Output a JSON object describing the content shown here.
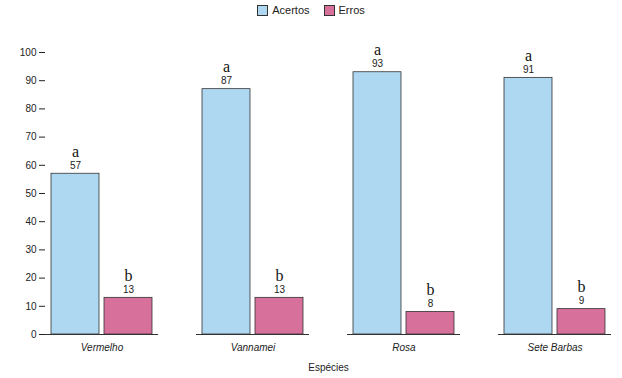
{
  "chart_data": {
    "type": "bar",
    "x_label": "Espécies",
    "categories": [
      "Vermelho",
      "Vannamei",
      "Rosa",
      "Sete Barbas"
    ],
    "series": [
      {
        "name": "Acertos",
        "color": "#aed8f2",
        "values": [
          57,
          87,
          93,
          91
        ],
        "annotations": [
          "a",
          "a",
          "a",
          "a"
        ]
      },
      {
        "name": "Erros",
        "color": "#d8709c",
        "values": [
          13,
          13,
          8,
          9
        ],
        "annotations": [
          "b",
          "b",
          "b",
          "b"
        ]
      }
    ],
    "ylim": [
      0,
      100
    ],
    "yticks": [
      0,
      10,
      20,
      30,
      40,
      50,
      60,
      70,
      80,
      90,
      100
    ],
    "grid": false,
    "legend": "top",
    "data_labels": true
  }
}
